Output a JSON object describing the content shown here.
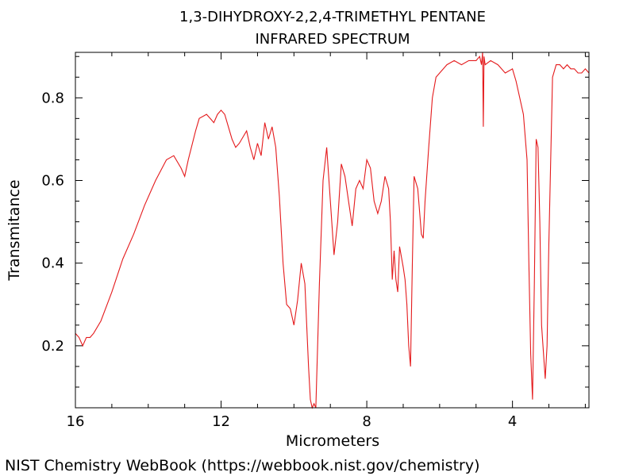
{
  "chart_data": {
    "type": "line",
    "title": "1,3-DIHYDROXY-2,2,4-TRIMETHYL PENTANE",
    "subtitle": "INFRARED SPECTRUM",
    "xlabel": "Micrometers",
    "ylabel": "Transmitance",
    "xlim": [
      16,
      1.9
    ],
    "ylim": [
      0.05,
      0.91
    ],
    "x_ticks": [
      16,
      12,
      8,
      4
    ],
    "y_ticks": [
      0.2,
      0.4,
      0.6,
      0.8
    ],
    "x_tick_labels": [
      "16",
      "12",
      "8",
      "4"
    ],
    "y_tick_labels": [
      "0.2",
      "0.4",
      "0.6",
      "0.8"
    ],
    "grid": false,
    "legend": "none",
    "line_color": "#e41a1c",
    "series": [
      {
        "x": [
          16.0,
          15.9,
          15.8,
          15.7,
          15.6,
          15.5,
          15.3,
          15.0,
          14.7,
          14.4,
          14.1,
          13.8,
          13.5,
          13.3,
          13.1,
          13.0,
          12.9,
          12.7,
          12.6,
          12.4,
          12.3,
          12.2,
          12.1,
          12.0,
          11.9,
          11.8,
          11.7,
          11.6,
          11.5,
          11.3,
          11.2,
          11.1,
          11.0,
          10.9,
          10.8,
          10.7,
          10.6,
          10.5,
          10.4,
          10.3,
          10.2,
          10.1,
          10.0,
          9.9,
          9.8,
          9.7,
          9.6,
          9.55,
          9.5,
          9.45,
          9.4,
          9.3,
          9.2,
          9.1,
          9.0,
          8.9,
          8.8,
          8.7,
          8.6,
          8.5,
          8.4,
          8.3,
          8.2,
          8.1,
          8.0,
          7.9,
          7.8,
          7.7,
          7.6,
          7.5,
          7.4,
          7.35,
          7.3,
          7.25,
          7.2,
          7.15,
          7.1,
          7.0,
          6.95,
          6.9,
          6.85,
          6.8,
          6.75,
          6.7,
          6.6,
          6.5,
          6.45,
          6.4,
          6.3,
          6.2,
          6.1,
          6.0,
          5.9,
          5.8,
          5.6,
          5.4,
          5.2,
          5.0,
          4.9,
          4.85,
          4.82,
          4.8,
          4.78,
          4.75,
          4.6,
          4.4,
          4.2,
          4.0,
          3.9,
          3.8,
          3.7,
          3.6,
          3.55,
          3.5,
          3.45,
          3.4,
          3.35,
          3.3,
          3.25,
          3.2,
          3.1,
          3.05,
          3.0,
          2.95,
          2.9,
          2.8,
          2.7,
          2.6,
          2.5,
          2.4,
          2.3,
          2.2,
          2.1,
          2.0,
          1.9
        ],
        "y": [
          0.23,
          0.22,
          0.2,
          0.22,
          0.22,
          0.23,
          0.26,
          0.33,
          0.41,
          0.47,
          0.54,
          0.6,
          0.65,
          0.66,
          0.63,
          0.61,
          0.65,
          0.72,
          0.75,
          0.76,
          0.75,
          0.74,
          0.76,
          0.77,
          0.76,
          0.73,
          0.7,
          0.68,
          0.69,
          0.72,
          0.68,
          0.65,
          0.69,
          0.66,
          0.74,
          0.7,
          0.73,
          0.68,
          0.56,
          0.4,
          0.3,
          0.29,
          0.25,
          0.31,
          0.4,
          0.35,
          0.15,
          0.07,
          0.05,
          0.06,
          0.05,
          0.35,
          0.6,
          0.68,
          0.55,
          0.42,
          0.5,
          0.64,
          0.61,
          0.55,
          0.49,
          0.58,
          0.6,
          0.58,
          0.65,
          0.63,
          0.55,
          0.52,
          0.55,
          0.61,
          0.58,
          0.5,
          0.36,
          0.43,
          0.36,
          0.33,
          0.44,
          0.39,
          0.36,
          0.3,
          0.2,
          0.15,
          0.4,
          0.61,
          0.58,
          0.47,
          0.46,
          0.55,
          0.68,
          0.8,
          0.85,
          0.86,
          0.87,
          0.88,
          0.89,
          0.88,
          0.89,
          0.89,
          0.9,
          0.88,
          0.91,
          0.73,
          0.9,
          0.88,
          0.89,
          0.88,
          0.86,
          0.87,
          0.84,
          0.8,
          0.76,
          0.65,
          0.4,
          0.18,
          0.07,
          0.35,
          0.7,
          0.68,
          0.5,
          0.25,
          0.12,
          0.2,
          0.45,
          0.65,
          0.85,
          0.88,
          0.88,
          0.87,
          0.88,
          0.87,
          0.87,
          0.86,
          0.86,
          0.87,
          0.86
        ]
      }
    ]
  },
  "footer": "NIST Chemistry WebBook (https://webbook.nist.gov/chemistry)"
}
